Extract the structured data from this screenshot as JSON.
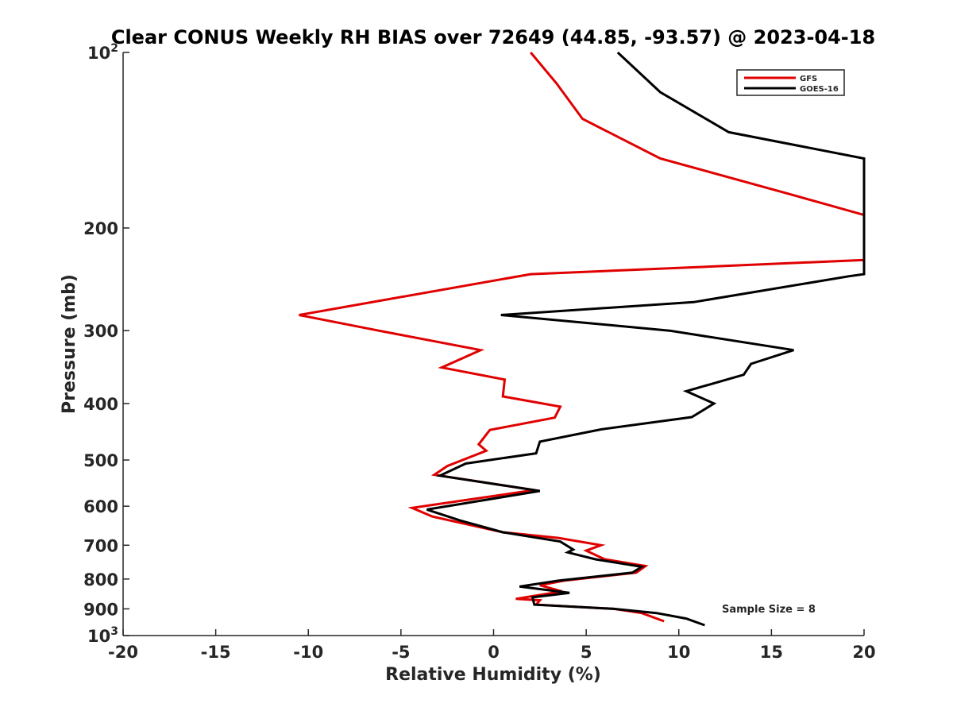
{
  "chart_data": {
    "type": "line",
    "title": "Clear CONUS Weekly RH BIAS over 72649 (44.85, -93.57) @ 2023-04-18",
    "xlabel": "Relative Humidity (%)",
    "ylabel": "Pressure (mb)",
    "xlim": [
      -20,
      20
    ],
    "ylim": [
      100,
      1000
    ],
    "y_scale": "log",
    "y_reversed": true,
    "x_ticks": [
      -20,
      -15,
      -10,
      -5,
      0,
      5,
      10,
      15,
      20
    ],
    "x_tick_labels": [
      "-20",
      "-15",
      "-10",
      "-5",
      "0",
      "5",
      "10",
      "15",
      "20"
    ],
    "y_ticks": [
      100,
      200,
      300,
      400,
      500,
      600,
      700,
      800,
      900,
      1000
    ],
    "y_tick_labels": [
      "10^2",
      "200",
      "300",
      "400",
      "500",
      "600",
      "700",
      "800",
      "900",
      "10^3"
    ],
    "grid": false,
    "legend_position": "top-right",
    "annotation": "Sample Size = 8",
    "series": [
      {
        "name": "GFS",
        "color": "#e00000",
        "points": [
          [
            2.0,
            100
          ],
          [
            3.4,
            113
          ],
          [
            4.8,
            130
          ],
          [
            9.0,
            152
          ],
          [
            16.0,
            175
          ],
          [
            20.0,
            190
          ],
          [
            20.0,
            227
          ],
          [
            2.0,
            240
          ],
          [
            -10.5,
            282
          ],
          [
            -6.2,
            300
          ],
          [
            -0.7,
            324
          ],
          [
            -2.8,
            347
          ],
          [
            0.6,
            364
          ],
          [
            0.5,
            389
          ],
          [
            3.6,
            405
          ],
          [
            3.3,
            423
          ],
          [
            -0.2,
            444
          ],
          [
            -0.8,
            470
          ],
          [
            -0.4,
            482
          ],
          [
            -2.5,
            512
          ],
          [
            -3.2,
            530
          ],
          [
            2.2,
            563
          ],
          [
            -4.4,
            604
          ],
          [
            -3.3,
            625
          ],
          [
            0.5,
            665
          ],
          [
            3.5,
            680
          ],
          [
            5.8,
            700
          ],
          [
            5.0,
            715
          ],
          [
            6.0,
            740
          ],
          [
            8.2,
            760
          ],
          [
            7.7,
            780
          ],
          [
            3.8,
            805
          ],
          [
            2.5,
            820
          ],
          [
            3.7,
            840
          ],
          [
            1.2,
            865
          ],
          [
            2.5,
            870
          ],
          [
            2.3,
            885
          ],
          [
            6.5,
            900
          ],
          [
            8.0,
            915
          ],
          [
            9.2,
            945
          ]
        ]
      },
      {
        "name": "GOES-16",
        "color": "#000000",
        "points": [
          [
            6.7,
            100
          ],
          [
            9.0,
            117
          ],
          [
            12.7,
            137
          ],
          [
            20.0,
            152
          ],
          [
            20.0,
            240
          ],
          [
            19.2,
            242
          ],
          [
            10.8,
            268
          ],
          [
            0.4,
            282
          ],
          [
            9.5,
            300
          ],
          [
            16.2,
            324
          ],
          [
            13.9,
            342
          ],
          [
            13.5,
            357
          ],
          [
            10.4,
            381
          ],
          [
            11.9,
            400
          ],
          [
            10.7,
            422
          ],
          [
            5.8,
            443
          ],
          [
            2.5,
            465
          ],
          [
            2.3,
            487
          ],
          [
            -1.5,
            507
          ],
          [
            -2.9,
            532
          ],
          [
            2.5,
            565
          ],
          [
            -3.6,
            608
          ],
          [
            -1.8,
            635
          ],
          [
            0.5,
            665
          ],
          [
            3.6,
            690
          ],
          [
            4.3,
            712
          ],
          [
            4.0,
            720
          ],
          [
            5.5,
            740
          ],
          [
            8.0,
            762
          ],
          [
            7.5,
            780
          ],
          [
            3.5,
            805
          ],
          [
            1.4,
            824
          ],
          [
            4.1,
            845
          ],
          [
            2.1,
            860
          ],
          [
            2.2,
            885
          ],
          [
            6.5,
            900
          ],
          [
            8.8,
            915
          ],
          [
            10.4,
            935
          ],
          [
            11.4,
            960
          ]
        ]
      }
    ]
  }
}
